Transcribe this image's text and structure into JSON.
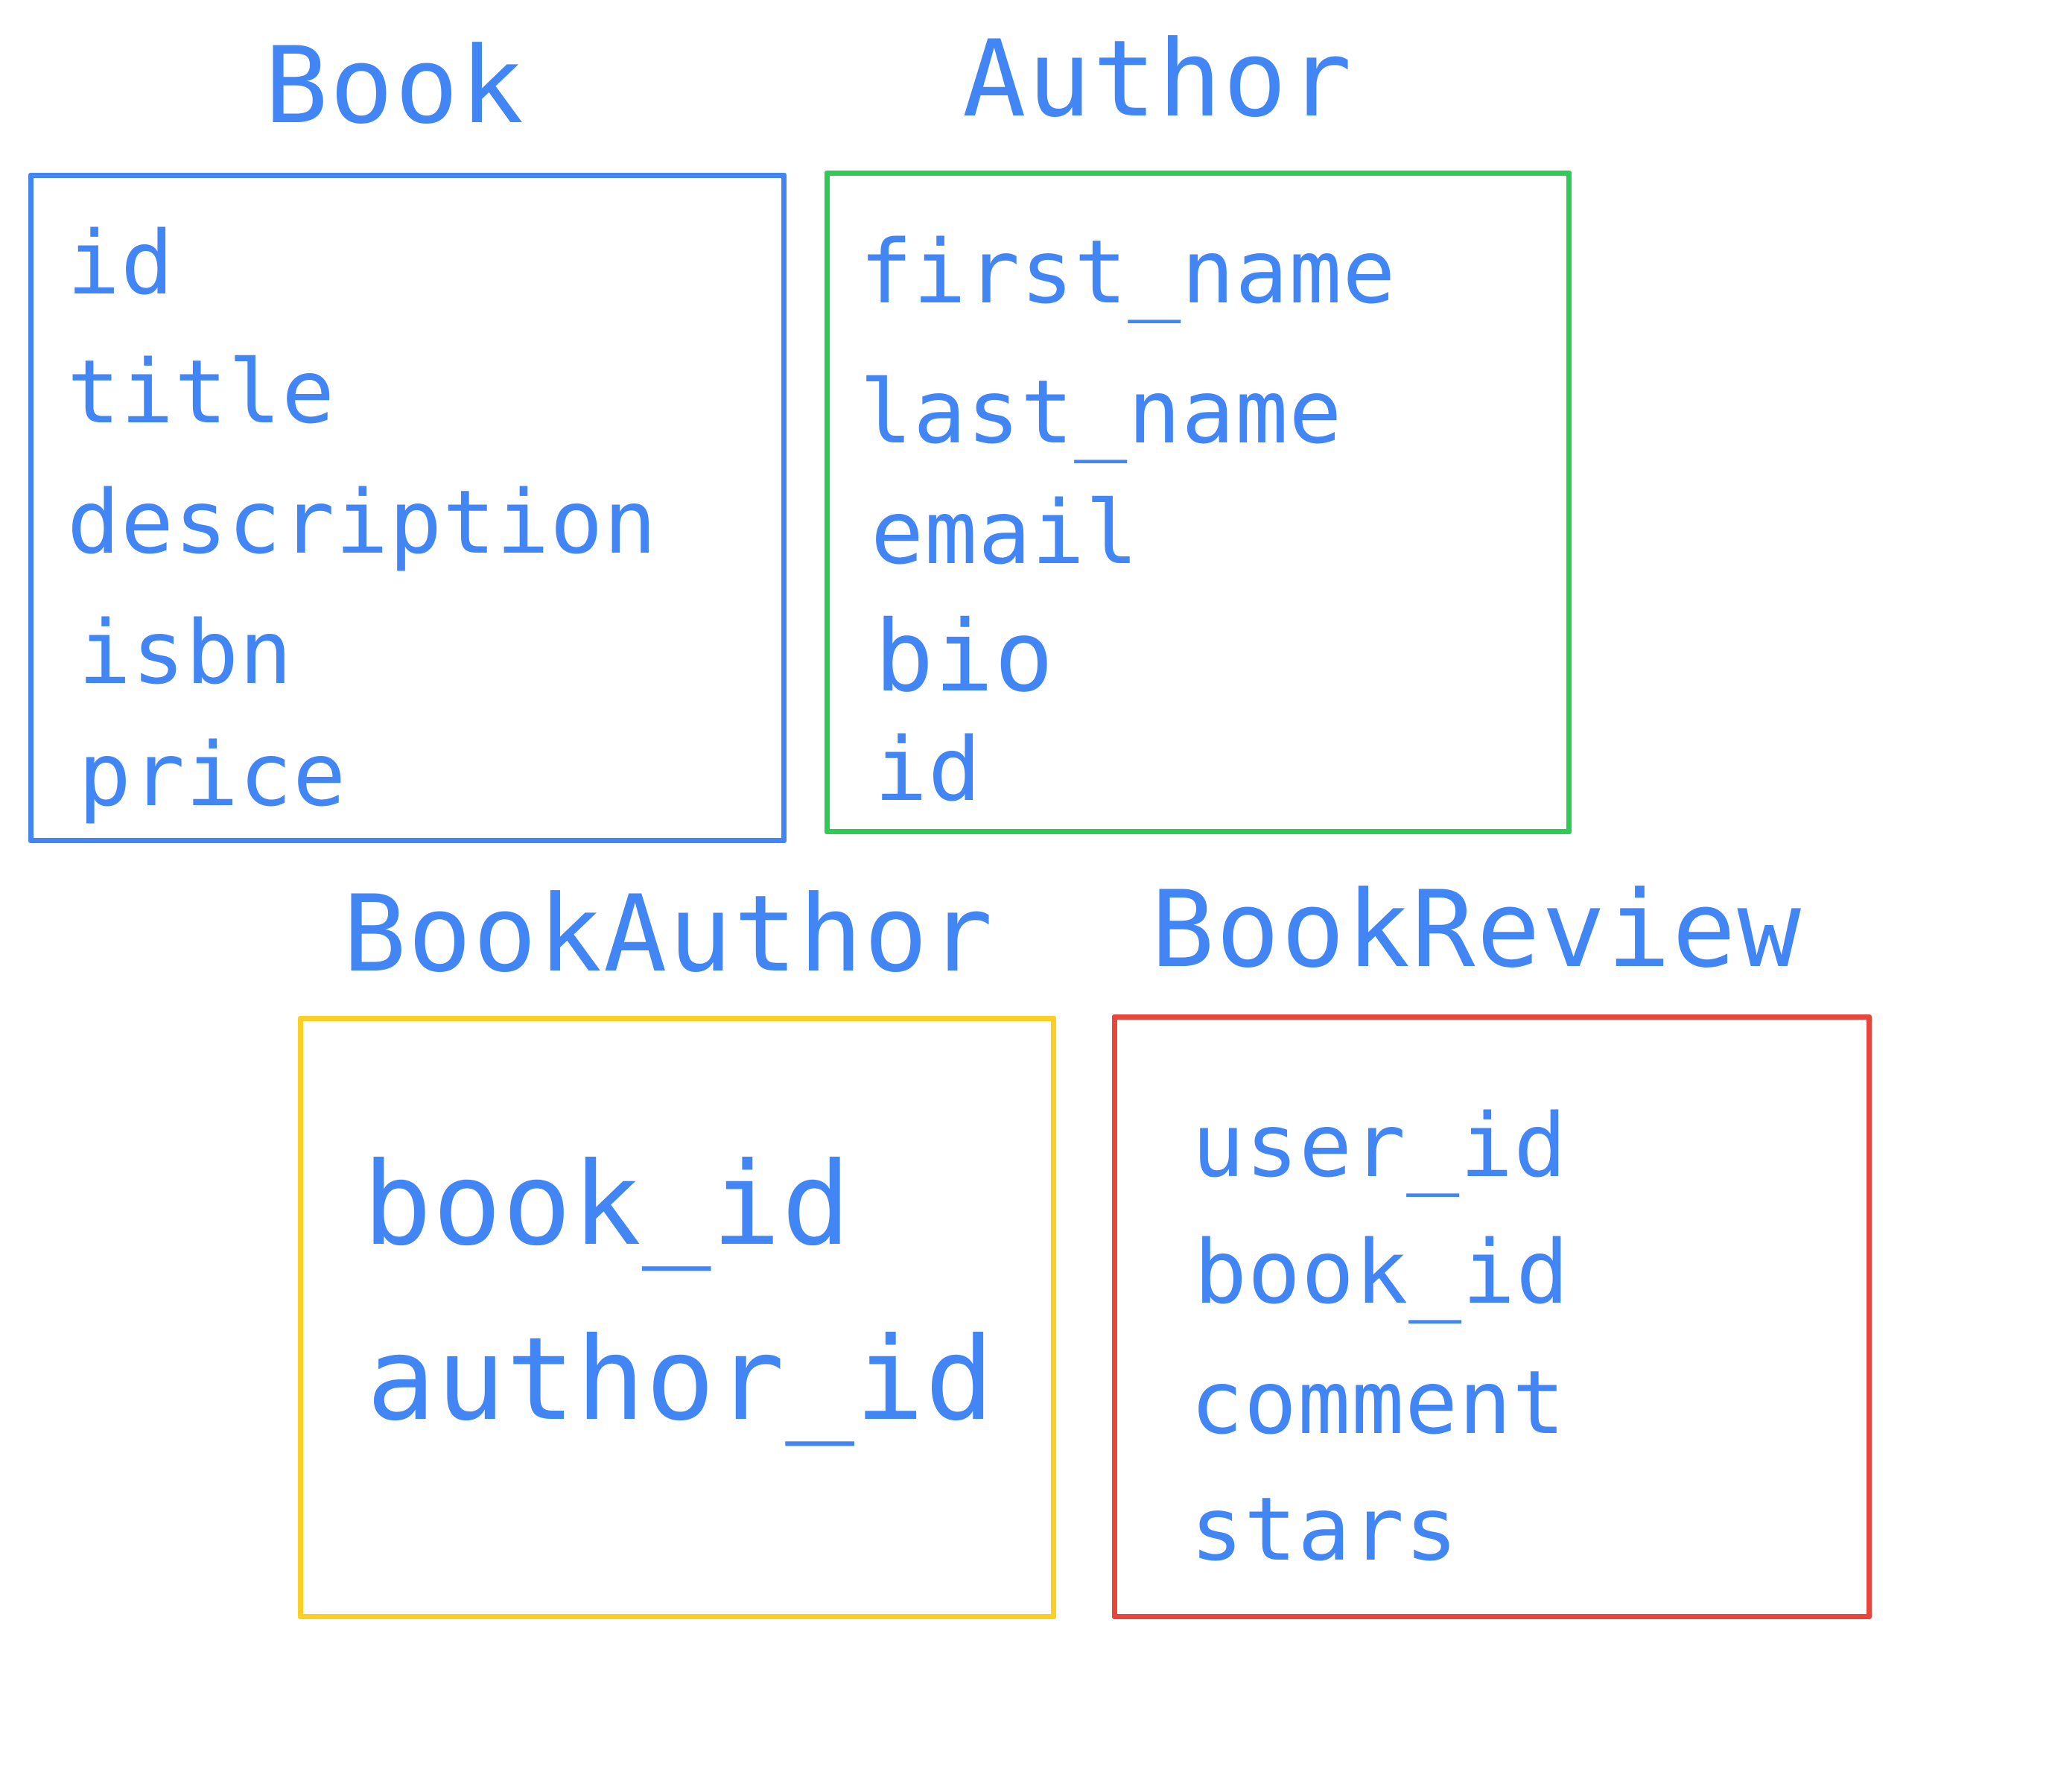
{
  "colors": {
    "text": "#4285f4",
    "book_border": "#4285f4",
    "author_border": "#2ecc55",
    "bookauthor_border": "#fbcf24",
    "bookreview_border": "#e8453c"
  },
  "entities": {
    "book": {
      "title": "Book",
      "fields": [
        "id",
        "title",
        "description",
        "isbn",
        "price"
      ]
    },
    "author": {
      "title": "Author",
      "fields": [
        "first_name",
        "last_name",
        "email",
        "bio",
        "id"
      ]
    },
    "bookauthor": {
      "title": "BookAuthor",
      "fields": [
        "book_id",
        "author_id"
      ]
    },
    "bookreview": {
      "title": "BookReview",
      "fields": [
        "user_id",
        "book_id",
        "comment",
        "stars"
      ]
    }
  }
}
